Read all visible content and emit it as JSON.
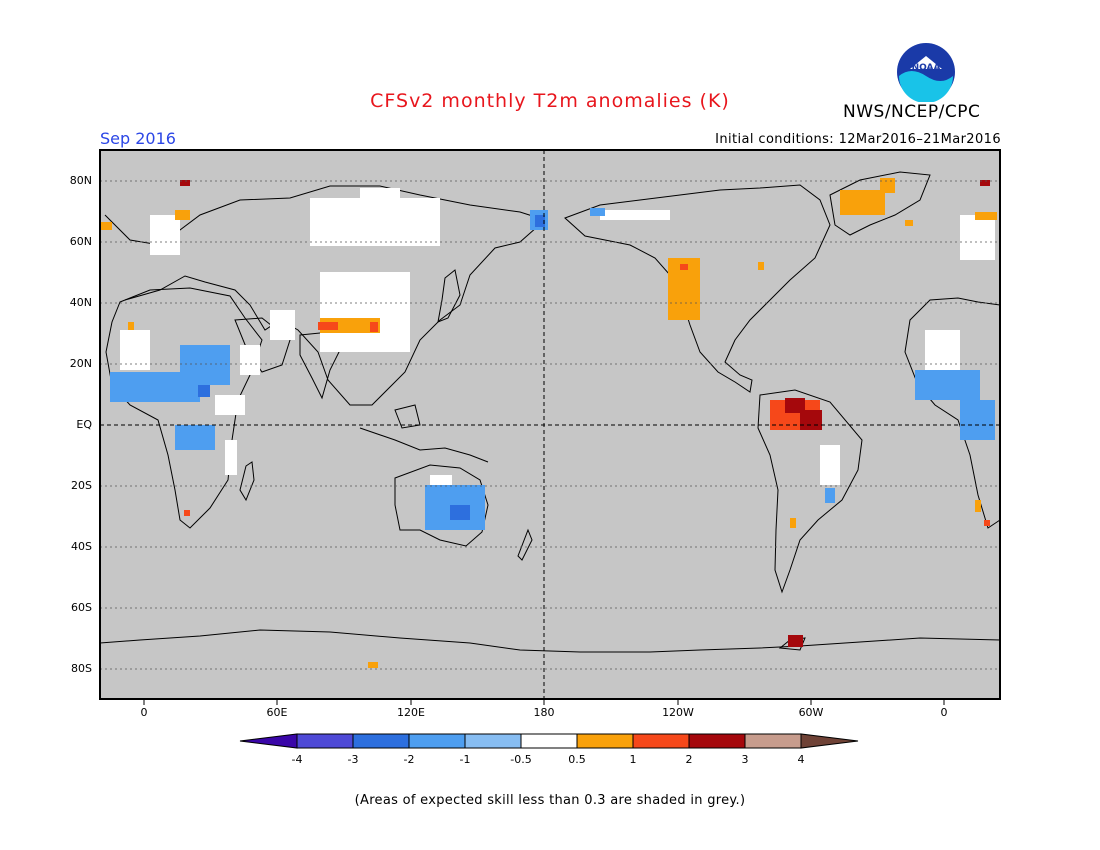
{
  "title": "CFSv2 monthly T2m anomalies (K)",
  "month": "Sep 2016",
  "initial_conditions": "Initial conditions: 12Mar2016–21Mar2016",
  "agency": "NWS/NCEP/CPC",
  "logo_text": "NOAA",
  "lat_labels": [
    "80N",
    "60N",
    "40N",
    "20N",
    "EQ",
    "20S",
    "40S",
    "60S",
    "80S"
  ],
  "lon_labels": [
    "0",
    "60E",
    "120E",
    "180",
    "120W",
    "60W",
    "0"
  ],
  "legend": {
    "ticks": [
      "-4",
      "-3",
      "-2",
      "-1",
      "-0.5",
      "0.5",
      "1",
      "2",
      "3",
      "4"
    ],
    "colors": [
      "#3a06a8",
      "#4e49d6",
      "#2d6fde",
      "#4e9ef0",
      "#87bdf2",
      "#ffffff",
      "#f9a10b",
      "#f6481a",
      "#a5080c",
      "#c79c8d",
      "#6f4236"
    ]
  },
  "footnote": "(Areas of expected skill less than 0.3 are shaded in grey.)",
  "colors": {
    "skill_grey": "#c6c6c6",
    "title_red": "#e8161d",
    "month_blue": "#2b46e6"
  }
}
